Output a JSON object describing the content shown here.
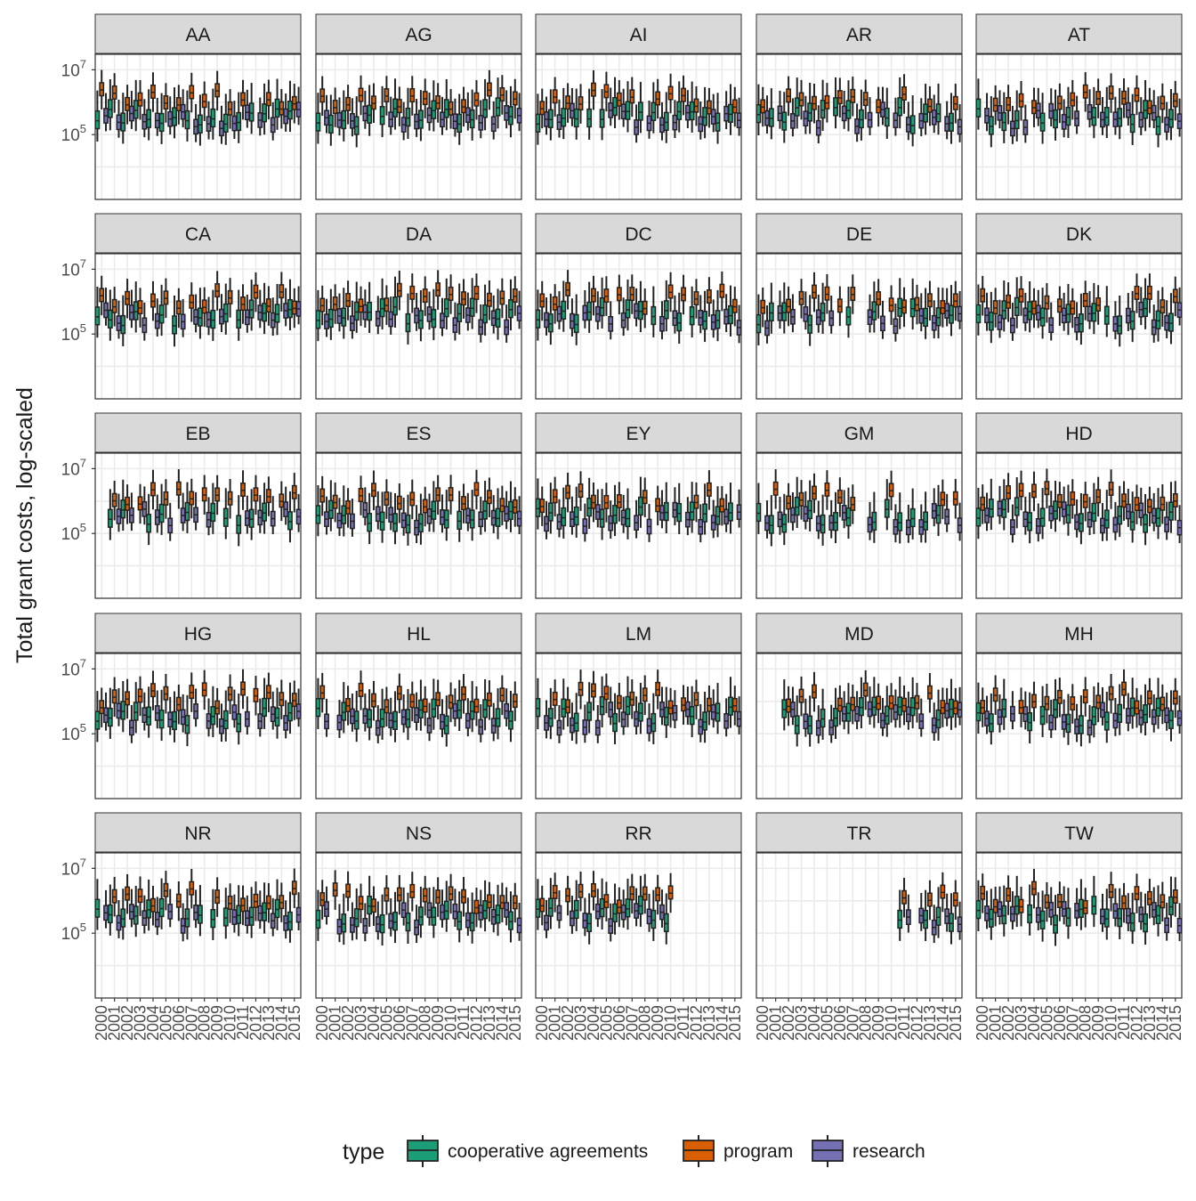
{
  "chart_data": {
    "type": "boxplot",
    "facet_variable": "agency code",
    "facets": [
      "AA",
      "AG",
      "AI",
      "AR",
      "AT",
      "CA",
      "DA",
      "DC",
      "DE",
      "DK",
      "EB",
      "ES",
      "EY",
      "GM",
      "HD",
      "HG",
      "HL",
      "LM",
      "MD",
      "MH",
      "NR",
      "NS",
      "RR",
      "TR",
      "TW"
    ],
    "ylabel": "Total grant costs, log-scaled",
    "y_scale": "log10",
    "ylim": [
      1000,
      30000000
    ],
    "y_ticks": [
      {
        "value": 100000,
        "base": "10",
        "exp": "5"
      },
      {
        "value": 10000000,
        "base": "10",
        "exp": "7"
      }
    ],
    "x_ticks": [
      "2000",
      "2001",
      "2002",
      "2003",
      "2004",
      "2005",
      "2006",
      "2007",
      "2008",
      "2009",
      "2010",
      "2011",
      "2012",
      "2013",
      "2014",
      "2015"
    ],
    "grid": true,
    "legend": {
      "title": "type",
      "position": "bottom",
      "entries": [
        {
          "key": "cooperative",
          "label": "cooperative agreements",
          "color": "#1B9E77"
        },
        {
          "key": "program",
          "label": "program",
          "color": "#D95F02"
        },
        {
          "key": "research",
          "label": "research",
          "color": "#7570B3"
        }
      ]
    },
    "series_levels": {
      "cooperative": {
        "lo": 80000,
        "q1": 200000,
        "med": 350000,
        "q3": 700000,
        "hi": 3000000
      },
      "program": {
        "lo": 300000,
        "q1": 800000,
        "med": 1200000,
        "q3": 2000000,
        "hi": 5000000
      },
      "research": {
        "lo": 100000,
        "q1": 180000,
        "med": 300000,
        "q3": 500000,
        "hi": 1500000
      }
    }
  }
}
